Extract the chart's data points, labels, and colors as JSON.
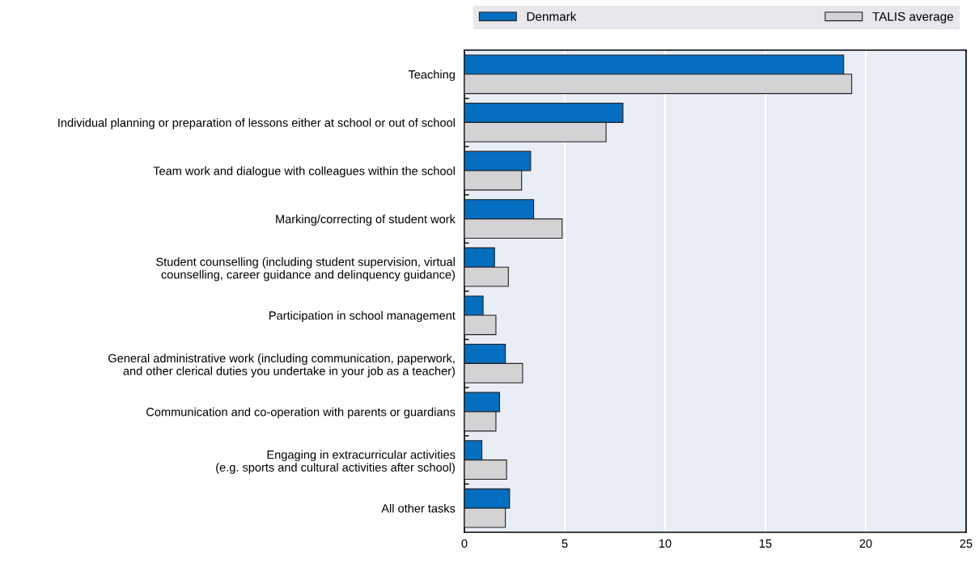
{
  "chart_data": {
    "type": "bar",
    "orientation": "horizontal",
    "categories": [
      "Teaching",
      "Individual planning or preparation of lessons either at school or out of school",
      "Team work and dialogue with colleagues within the school",
      "Marking/correcting of student work",
      "Student counselling (including student supervision, virtual\ncounselling, career guidance and delinquency guidance)",
      "Participation in school management",
      "General administrative work (including communication, paperwork,\nand other clerical duties you undertake in your job as a teacher)",
      "Communication and co-operation with parents or guardians",
      "Engaging in extracurricular activities\n(e.g. sports and cultural activities after school)",
      "All other tasks"
    ],
    "series": [
      {
        "name": "Denmark",
        "color": "#046ec0",
        "values": [
          18.9,
          7.9,
          3.3,
          3.45,
          1.5,
          0.93,
          2.04,
          1.75,
          0.87,
          2.25
        ]
      },
      {
        "name": "TALIS average",
        "color": "#d3d3d6",
        "values": [
          19.3,
          7.06,
          2.85,
          4.87,
          2.19,
          1.57,
          2.9,
          1.57,
          2.1,
          2.04
        ]
      }
    ],
    "xlim": [
      0,
      25
    ],
    "xticks": [
      0,
      5,
      10,
      15,
      20,
      25
    ],
    "grid": "x",
    "legend": "top"
  }
}
